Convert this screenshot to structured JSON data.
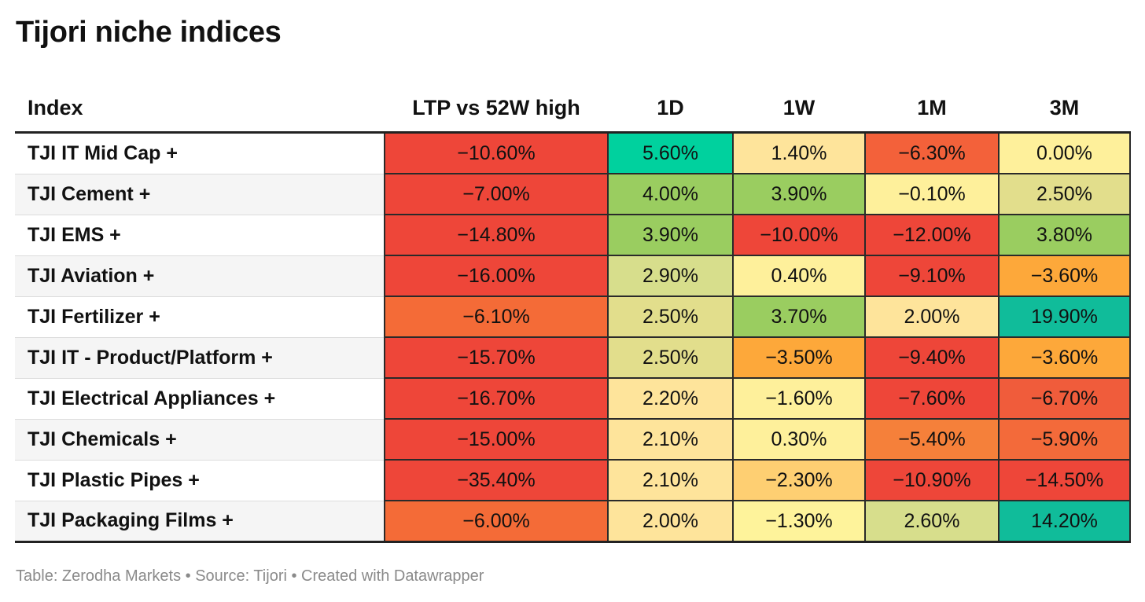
{
  "title": "Tijori niche indices",
  "footer": "Table: Zerodha Markets • Source: Tijori • Created with Datawrapper",
  "chart_data": {
    "type": "table",
    "title": "Tijori niche indices",
    "columns": [
      "Index",
      "LTP vs 52W high",
      "1D",
      "1W",
      "1M",
      "3M"
    ],
    "rows": [
      {
        "index": "TJI IT Mid Cap +",
        "values": [
          "−10.60%",
          "5.60%",
          "1.40%",
          "−6.30%",
          "0.00%"
        ],
        "colors": [
          "#ee4639",
          "#00d19e",
          "#fee49b",
          "#f3613a",
          "#fef09b"
        ]
      },
      {
        "index": "TJI Cement +",
        "values": [
          "−7.00%",
          "4.00%",
          "3.90%",
          "−0.10%",
          "2.50%"
        ],
        "colors": [
          "#ee4639",
          "#9acd60",
          "#9acd60",
          "#fef09b",
          "#e2de8c"
        ]
      },
      {
        "index": "TJI EMS +",
        "values": [
          "−14.80%",
          "3.90%",
          "−10.00%",
          "−12.00%",
          "3.80%"
        ],
        "colors": [
          "#ee4639",
          "#9acd60",
          "#ee4639",
          "#ee4639",
          "#9acd60"
        ]
      },
      {
        "index": "TJI Aviation +",
        "values": [
          "−16.00%",
          "2.90%",
          "0.40%",
          "−9.10%",
          "−3.60%"
        ],
        "colors": [
          "#ee4639",
          "#d7de8c",
          "#fef09b",
          "#ee4639",
          "#fda83a"
        ]
      },
      {
        "index": "TJI Fertilizer +",
        "values": [
          "−6.10%",
          "2.50%",
          "3.70%",
          "2.00%",
          "19.90%"
        ],
        "colors": [
          "#f46b37",
          "#e2de8c",
          "#9acd60",
          "#fee49b",
          "#10bc9a"
        ]
      },
      {
        "index": "TJI IT - Product/Platform +",
        "values": [
          "−15.70%",
          "2.50%",
          "−3.50%",
          "−9.40%",
          "−3.60%"
        ],
        "colors": [
          "#ee4639",
          "#e2de8c",
          "#fda83a",
          "#ee4639",
          "#fda83a"
        ]
      },
      {
        "index": "TJI Electrical Appliances +",
        "values": [
          "−16.70%",
          "2.20%",
          "−1.60%",
          "−7.60%",
          "−6.70%"
        ],
        "colors": [
          "#ee4639",
          "#fee49b",
          "#fef09b",
          "#ee4639",
          "#f05c3b"
        ]
      },
      {
        "index": "TJI Chemicals +",
        "values": [
          "−15.00%",
          "2.10%",
          "0.30%",
          "−5.40%",
          "−5.90%"
        ],
        "colors": [
          "#ee4639",
          "#fee49b",
          "#fef09b",
          "#f5803a",
          "#f36a3a"
        ]
      },
      {
        "index": "TJI Plastic Pipes +",
        "values": [
          "−35.40%",
          "2.10%",
          "−2.30%",
          "−10.90%",
          "−14.50%"
        ],
        "colors": [
          "#ee4639",
          "#fee49b",
          "#fecf72",
          "#ee4639",
          "#ee4639"
        ]
      },
      {
        "index": "TJI Packaging Films +",
        "values": [
          "−6.00%",
          "2.00%",
          "−1.30%",
          "2.60%",
          "14.20%"
        ],
        "colors": [
          "#f46b37",
          "#fee49b",
          "#fef39b",
          "#d7de8c",
          "#10bc9a"
        ]
      }
    ]
  }
}
